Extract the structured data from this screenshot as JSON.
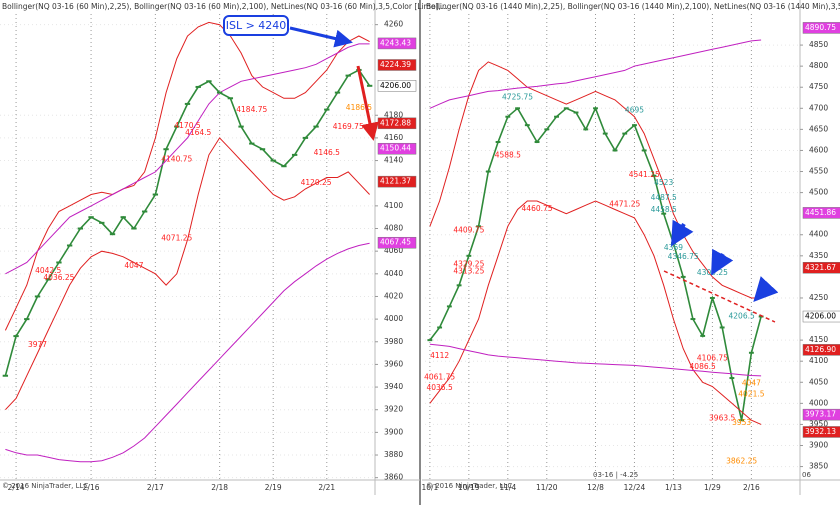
{
  "chart_data": [
    {
      "type": "line",
      "header": "Bollinger(NQ 03-16 (60 Min),2,25), Bollinger(NQ 03-16 (60 Min),2,100), NetLines(NQ 03-16 (60 Min),3,5,Color [Lime],...",
      "copyright": "© 2016 NinjaTrader, LLC",
      "callout": "ISL > 4240",
      "categories": [
        null,
        "2/14",
        null,
        null,
        null,
        null,
        null,
        null,
        "2/16",
        null,
        null,
        null,
        null,
        null,
        "2/17",
        null,
        null,
        null,
        null,
        null,
        "2/18",
        null,
        null,
        null,
        null,
        "2/19",
        null,
        null,
        null,
        null,
        "2/21",
        null,
        null,
        null,
        null
      ],
      "series": [
        {
          "color": "#2f8a3a",
          "values": [
            3950,
            3985,
            4000,
            4020,
            4035,
            4050,
            4065,
            4080,
            4090,
            4085,
            4075,
            4090,
            4080,
            4095,
            4110,
            4150,
            4170,
            4190,
            4205,
            4210,
            4200,
            4195,
            4170,
            4155,
            4150,
            4140,
            4135,
            4145,
            4160,
            4170,
            4185,
            4200,
            4215,
            4220,
            4206
          ]
        },
        {
          "color": "#e02020",
          "values": [
            3990,
            4010,
            4030,
            4060,
            4080,
            4095,
            4100,
            4105,
            4110,
            4112,
            4110,
            4115,
            4118,
            4130,
            4160,
            4200,
            4230,
            4250,
            4258,
            4262,
            4260,
            4250,
            4235,
            4215,
            4205,
            4200,
            4195,
            4195,
            4200,
            4210,
            4220,
            4235,
            4245,
            4250,
            4245
          ]
        },
        {
          "color": "#e02020",
          "values": [
            3920,
            3930,
            3950,
            3970,
            3990,
            4010,
            4030,
            4045,
            4055,
            4060,
            4058,
            4055,
            4050,
            4045,
            4040,
            4030,
            4040,
            4070,
            4110,
            4145,
            4160,
            4150,
            4140,
            4130,
            4120,
            4110,
            4105,
            4108,
            4115,
            4120,
            4125,
            4125,
            4130,
            4120,
            4110
          ]
        },
        {
          "color": "#c020c0",
          "values": [
            4040,
            4045,
            4050,
            4060,
            4070,
            4080,
            4090,
            4095,
            4100,
            4105,
            4110,
            4115,
            4120,
            4125,
            4130,
            4140,
            4150,
            4160,
            4175,
            4190,
            4200,
            4205,
            4210,
            4212,
            4214,
            4216,
            4218,
            4220,
            4222,
            4225,
            4230,
            4235,
            4240,
            4243,
            4243
          ]
        },
        {
          "color": "#c020c0",
          "values": [
            3885,
            3882,
            3880,
            3880,
            3878,
            3876,
            3875,
            3874,
            3874,
            3875,
            3878,
            3882,
            3888,
            3895,
            3905,
            3915,
            3925,
            3935,
            3945,
            3955,
            3965,
            3975,
            3985,
            3995,
            4005,
            4015,
            4025,
            4033,
            4040,
            4047,
            4053,
            4058,
            4062,
            4065,
            4067
          ]
        }
      ],
      "ylim": [
        3850,
        4280
      ],
      "yticks": [
        3860,
        3880,
        3900,
        3920,
        3940,
        3960,
        3980,
        4000,
        4020,
        4040,
        4060,
        4080,
        4100,
        4140,
        4160,
        4180,
        4260
      ],
      "badges": [
        {
          "value": 4243.43,
          "color": "#e040e0"
        },
        {
          "value": 4224.39,
          "color": "#e02020"
        },
        {
          "value": 4206,
          "label": "4206.00",
          "color": "#ffffff"
        },
        {
          "value": 4172.88,
          "color": "#e02020"
        },
        {
          "value": 4150.44,
          "color": "#e040e0"
        },
        {
          "value": 4121.37,
          "color": "#e02020"
        },
        {
          "value": 4067.45,
          "color": "#e040e0"
        }
      ],
      "annotations": [
        {
          "x": 3,
          "value": 3977,
          "color": "#ff2020"
        },
        {
          "x": 4,
          "value": 4042.5,
          "color": "#ff2020"
        },
        {
          "x": 5,
          "value": 4036.25,
          "color": "#ff2020"
        },
        {
          "x": 12,
          "value": 4047,
          "color": "#ff2020"
        },
        {
          "x": 16,
          "value": 4071.25,
          "color": "#ff2020"
        },
        {
          "x": 16,
          "value": 4140.75,
          "color": "#ff2020"
        },
        {
          "x": 17,
          "value": 4170.5,
          "color": "#ff2020"
        },
        {
          "x": 18,
          "value": 4164.5,
          "color": "#ff2020"
        },
        {
          "x": 23,
          "value": 4184.75,
          "color": "#ff2020"
        },
        {
          "x": 29,
          "value": 4120.25,
          "color": "#ff2020"
        },
        {
          "x": 30,
          "value": 4146.5,
          "color": "#ff2020"
        },
        {
          "x": 32,
          "value": 4169.75,
          "color": "#ff2020"
        },
        {
          "x": 33,
          "value": 4186.5,
          "color": "#ff8c00"
        }
      ]
    },
    {
      "type": "line",
      "header": "Bollinger(NQ 03-16 (1440 Min),2,25), Bollinger(NQ 03-16 (1440 Min),2,100), NetLines(NQ 03-16 (1440 Min),3,5,Colo...",
      "copyright": "© 2016 NinjaTrader, LLC",
      "status": "03-16 | -4.25",
      "corner": "06",
      "categories": [
        "10/1",
        null,
        null,
        null,
        "10/19",
        null,
        null,
        null,
        "11/4",
        null,
        null,
        null,
        "11/20",
        null,
        null,
        null,
        null,
        "12/8",
        null,
        null,
        null,
        "12/24",
        null,
        null,
        null,
        "1/13",
        null,
        null,
        null,
        "1/29",
        null,
        null,
        null,
        "2/16",
        null
      ],
      "series": [
        {
          "color": "#2f8a3a",
          "values": [
            4150,
            4180,
            4230,
            4280,
            4350,
            4420,
            4550,
            4620,
            4680,
            4700,
            4660,
            4620,
            4650,
            4680,
            4700,
            4690,
            4650,
            4700,
            4640,
            4600,
            4640,
            4660,
            4600,
            4540,
            4450,
            4380,
            4300,
            4200,
            4160,
            4250,
            4180,
            4060,
            3960,
            4120,
            4206
          ]
        },
        {
          "color": "#e02020",
          "values": [
            4420,
            4480,
            4560,
            4650,
            4730,
            4790,
            4810,
            4800,
            4790,
            4770,
            4750,
            4740,
            4730,
            4720,
            4710,
            4720,
            4730,
            4740,
            4730,
            4720,
            4700,
            4680,
            4640,
            4580,
            4520,
            4450,
            4400,
            4360,
            4330,
            4300,
            4280,
            4270,
            4260,
            4250,
            4250
          ]
        },
        {
          "color": "#e02020",
          "values": [
            4000,
            4030,
            4060,
            4100,
            4150,
            4200,
            4280,
            4350,
            4420,
            4460,
            4480,
            4480,
            4470,
            4460,
            4450,
            4460,
            4470,
            4480,
            4470,
            4460,
            4450,
            4440,
            4400,
            4350,
            4280,
            4200,
            4130,
            4080,
            4050,
            4040,
            4020,
            4000,
            3980,
            3960,
            3950
          ]
        },
        {
          "color": "#c020c0",
          "values": [
            4700,
            4710,
            4720,
            4725,
            4730,
            4735,
            4740,
            4742,
            4745,
            4748,
            4750,
            4752,
            4755,
            4758,
            4760,
            4765,
            4770,
            4775,
            4780,
            4785,
            4790,
            4800,
            4805,
            4810,
            4815,
            4820,
            4825,
            4830,
            4835,
            4840,
            4845,
            4850,
            4855,
            4860,
            4862
          ]
        },
        {
          "color": "#c020c0",
          "values": [
            4140,
            4138,
            4135,
            4130,
            4125,
            4120,
            4115,
            4112,
            4110,
            4108,
            4106,
            4104,
            4102,
            4100,
            4098,
            4096,
            4095,
            4094,
            4093,
            4092,
            4091,
            4090,
            4088,
            4086,
            4084,
            4082,
            4080,
            4078,
            4076,
            4074,
            4072,
            4070,
            4068,
            4066,
            4065
          ]
        }
      ],
      "ylim": [
        3830,
        4900
      ],
      "yticks": [
        3850,
        3900,
        3950,
        4000,
        4050,
        4100,
        4150,
        4250,
        4350,
        4400,
        4500,
        4550,
        4600,
        4650,
        4700,
        4750,
        4800,
        4850
      ],
      "badges": [
        {
          "value": 4890.75,
          "color": "#e040e0"
        },
        {
          "value": 4451.86,
          "color": "#e040e0"
        },
        {
          "value": 4321.67,
          "color": "#e02020"
        },
        {
          "value": 4206,
          "label": "4206.00",
          "color": "#ffffff"
        },
        {
          "value": 4126.9,
          "label": "4126.90",
          "color": "#e02020"
        },
        {
          "value": 3973.17,
          "color": "#e040e0"
        },
        {
          "value": 3932.13,
          "color": "#e02020"
        }
      ],
      "annotations": [
        {
          "x": 9,
          "value": 4725.75,
          "color": "#2a9a9a"
        },
        {
          "x": 21,
          "value": 4695,
          "color": "#2a9a9a"
        },
        {
          "x": 24,
          "value": 4523,
          "color": "#2a9a9a"
        },
        {
          "x": 24,
          "value": 4487.5,
          "color": "#2a9a9a"
        },
        {
          "x": 24,
          "value": 4458.5,
          "color": "#2a9a9a"
        },
        {
          "x": 25,
          "value": 4369,
          "color": "#2a9a9a"
        },
        {
          "x": 26,
          "value": 4346.75,
          "color": "#2a9a9a"
        },
        {
          "x": 29,
          "value": 4309.25,
          "color": "#2a9a9a"
        },
        {
          "x": 32,
          "value": 4206.5,
          "color": "#2a9a9a"
        },
        {
          "x": 4,
          "value": 4409.75,
          "color": "#ff2020"
        },
        {
          "x": 4,
          "value": 4329.25,
          "color": "#ff2020"
        },
        {
          "x": 4,
          "value": 4313.25,
          "color": "#ff2020"
        },
        {
          "x": 8,
          "value": 4588.5,
          "color": "#ff2020"
        },
        {
          "x": 22,
          "value": 4541.25,
          "color": "#ff2020"
        },
        {
          "x": 20,
          "value": 4471.25,
          "color": "#ff2020"
        },
        {
          "x": 11,
          "value": 4460.75,
          "color": "#ff2020"
        },
        {
          "x": 1,
          "value": 4112,
          "color": "#ff2020"
        },
        {
          "x": 1,
          "value": 4061.75,
          "color": "#ff2020"
        },
        {
          "x": 1,
          "value": 4036.5,
          "color": "#ff2020"
        },
        {
          "x": 29,
          "value": 4106.75,
          "color": "#ff2020"
        },
        {
          "x": 28,
          "value": 4086.5,
          "color": "#ff2020"
        },
        {
          "x": 30,
          "value": 3963.5,
          "color": "#ff2020"
        },
        {
          "x": 33,
          "value": 4047,
          "color": "#ff8c00"
        },
        {
          "x": 33,
          "value": 4021.5,
          "color": "#ff8c00"
        },
        {
          "x": 32,
          "value": 3953,
          "color": "#ff8c00"
        },
        {
          "x": 32,
          "value": 3862.25,
          "color": "#ff8c00"
        }
      ]
    }
  ]
}
